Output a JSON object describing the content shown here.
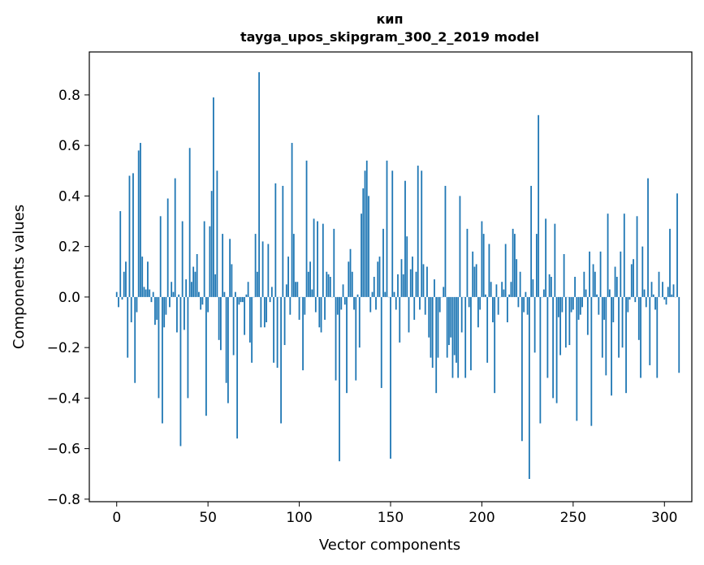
{
  "chart_data": {
    "type": "bar",
    "title": "кип",
    "subtitle": "tayga_upos_skipgram_300_2_2019 model",
    "xlabel": "Vector components",
    "ylabel": "Components values",
    "xlim": [
      -15,
      315
    ],
    "ylim": [
      -0.81,
      0.97
    ],
    "xticks": [
      0,
      50,
      100,
      150,
      200,
      250,
      300
    ],
    "yticks": [
      -0.8,
      -0.6,
      -0.4,
      -0.2,
      0.0,
      0.2,
      0.4,
      0.6,
      0.8
    ],
    "ytick_labels": [
      "−0.8",
      "−0.6",
      "−0.4",
      "−0.2",
      "0.0",
      "0.2",
      "0.4",
      "0.6",
      "0.8"
    ],
    "xtick_labels": [
      "0",
      "50",
      "100",
      "150",
      "200",
      "250",
      "300"
    ],
    "bar_color": "#1f77b4",
    "grid": false,
    "legend": "none",
    "values": [
      0.02,
      -0.04,
      0.34,
      -0.01,
      0.1,
      0.14,
      -0.24,
      0.48,
      -0.1,
      0.49,
      -0.34,
      -0.06,
      0.58,
      0.61,
      0.16,
      0.04,
      0.03,
      0.14,
      0.03,
      -0.02,
      0.02,
      -0.11,
      -0.09,
      -0.4,
      0.32,
      -0.5,
      -0.12,
      -0.07,
      0.39,
      -0.04,
      0.06,
      0.02,
      0.47,
      -0.14,
      0.01,
      -0.59,
      0.3,
      -0.13,
      0.07,
      -0.4,
      0.59,
      0.06,
      0.12,
      0.1,
      0.17,
      0.02,
      -0.05,
      -0.03,
      0.3,
      -0.47,
      -0.06,
      0.28,
      0.42,
      0.79,
      0.09,
      0.5,
      -0.17,
      -0.21,
      0.25,
      0.02,
      -0.34,
      -0.42,
      0.23,
      0.13,
      -0.23,
      0.02,
      -0.56,
      -0.03,
      -0.02,
      -0.02,
      -0.15,
      0.01,
      0.06,
      -0.18,
      -0.26,
      0.0,
      0.25,
      0.1,
      0.89,
      -0.12,
      0.22,
      -0.12,
      -0.1,
      0.21,
      -0.02,
      0.04,
      -0.26,
      0.45,
      -0.28,
      0.0,
      -0.5,
      0.44,
      -0.19,
      0.05,
      0.16,
      -0.07,
      0.61,
      0.25,
      0.06,
      0.06,
      -0.09,
      0.0,
      -0.29,
      -0.07,
      0.54,
      0.1,
      0.14,
      0.03,
      0.31,
      -0.06,
      0.3,
      -0.12,
      -0.14,
      0.29,
      -0.09,
      0.1,
      0.09,
      0.08,
      0.0,
      0.27,
      -0.33,
      -0.07,
      -0.65,
      -0.05,
      0.05,
      -0.03,
      -0.38,
      0.14,
      0.19,
      0.1,
      -0.05,
      -0.33,
      0.01,
      -0.2,
      0.33,
      0.43,
      0.5,
      0.54,
      0.4,
      -0.06,
      0.02,
      0.08,
      -0.05,
      0.14,
      0.16,
      -0.36,
      0.27,
      0.02,
      0.54,
      0.0,
      -0.64,
      0.5,
      0.02,
      -0.05,
      0.09,
      -0.18,
      0.15,
      0.09,
      0.46,
      0.24,
      -0.14,
      0.11,
      0.16,
      -0.09,
      0.1,
      0.52,
      -0.05,
      0.5,
      0.13,
      -0.07,
      0.12,
      -0.16,
      -0.24,
      -0.28,
      0.07,
      -0.38,
      -0.24,
      -0.06,
      0.0,
      0.04,
      0.44,
      -0.24,
      -0.19,
      -0.16,
      -0.32,
      -0.23,
      -0.26,
      -0.32,
      0.4,
      -0.14,
      0.0,
      -0.32,
      0.27,
      -0.04,
      -0.29,
      0.18,
      0.12,
      0.13,
      -0.12,
      -0.05,
      0.3,
      0.25,
      0.01,
      -0.26,
      0.21,
      0.06,
      -0.1,
      -0.38,
      0.05,
      -0.07,
      0.0,
      0.06,
      0.03,
      0.21,
      -0.1,
      0.01,
      0.06,
      0.27,
      0.25,
      0.15,
      -0.04,
      0.1,
      -0.57,
      -0.06,
      0.02,
      -0.07,
      -0.72,
      0.44,
      0.07,
      -0.22,
      0.25,
      0.72,
      -0.5,
      0.0,
      0.03,
      0.31,
      -0.32,
      0.09,
      0.08,
      -0.4,
      0.29,
      -0.42,
      -0.08,
      -0.23,
      -0.06,
      0.17,
      -0.2,
      0.0,
      -0.19,
      -0.06,
      -0.05,
      0.08,
      -0.49,
      -0.09,
      -0.07,
      -0.04,
      0.1,
      0.03,
      -0.15,
      0.18,
      -0.51,
      0.13,
      0.1,
      0.01,
      -0.07,
      0.18,
      -0.24,
      -0.09,
      -0.31,
      0.33,
      0.03,
      -0.39,
      -0.1,
      0.12,
      0.08,
      -0.24,
      0.18,
      -0.2,
      0.33,
      -0.38,
      -0.06,
      -0.01,
      0.13,
      0.15,
      -0.02,
      0.32,
      -0.17,
      -0.32,
      0.2,
      0.03,
      -0.04,
      0.47,
      -0.27,
      0.06,
      0.01,
      -0.05,
      -0.32,
      0.1,
      0.0,
      0.06,
      -0.01,
      -0.03,
      0.04,
      0.27,
      0.01,
      0.05,
      0.0,
      0.41,
      -0.3
    ]
  }
}
